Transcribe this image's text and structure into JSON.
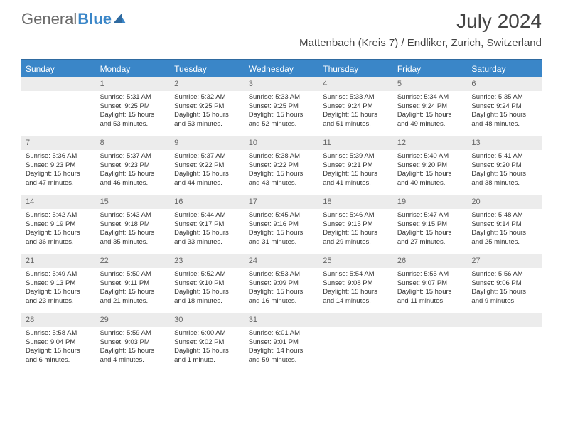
{
  "brand": {
    "part1": "General",
    "part2": "Blue"
  },
  "title": "July 2024",
  "location": "Mattenbach (Kreis 7) / Endliker, Zurich, Switzerland",
  "colors": {
    "header_bg": "#3a86c8",
    "border": "#2f6aa0",
    "daynum_bg": "#ececec",
    "text": "#333333"
  },
  "day_names": [
    "Sunday",
    "Monday",
    "Tuesday",
    "Wednesday",
    "Thursday",
    "Friday",
    "Saturday"
  ],
  "weeks": [
    [
      {
        "blank": true
      },
      {
        "n": "1",
        "sr": "5:31 AM",
        "ss": "9:25 PM",
        "dl": "15 hours and 53 minutes."
      },
      {
        "n": "2",
        "sr": "5:32 AM",
        "ss": "9:25 PM",
        "dl": "15 hours and 53 minutes."
      },
      {
        "n": "3",
        "sr": "5:33 AM",
        "ss": "9:25 PM",
        "dl": "15 hours and 52 minutes."
      },
      {
        "n": "4",
        "sr": "5:33 AM",
        "ss": "9:24 PM",
        "dl": "15 hours and 51 minutes."
      },
      {
        "n": "5",
        "sr": "5:34 AM",
        "ss": "9:24 PM",
        "dl": "15 hours and 49 minutes."
      },
      {
        "n": "6",
        "sr": "5:35 AM",
        "ss": "9:24 PM",
        "dl": "15 hours and 48 minutes."
      }
    ],
    [
      {
        "n": "7",
        "sr": "5:36 AM",
        "ss": "9:23 PM",
        "dl": "15 hours and 47 minutes."
      },
      {
        "n": "8",
        "sr": "5:37 AM",
        "ss": "9:23 PM",
        "dl": "15 hours and 46 minutes."
      },
      {
        "n": "9",
        "sr": "5:37 AM",
        "ss": "9:22 PM",
        "dl": "15 hours and 44 minutes."
      },
      {
        "n": "10",
        "sr": "5:38 AM",
        "ss": "9:22 PM",
        "dl": "15 hours and 43 minutes."
      },
      {
        "n": "11",
        "sr": "5:39 AM",
        "ss": "9:21 PM",
        "dl": "15 hours and 41 minutes."
      },
      {
        "n": "12",
        "sr": "5:40 AM",
        "ss": "9:20 PM",
        "dl": "15 hours and 40 minutes."
      },
      {
        "n": "13",
        "sr": "5:41 AM",
        "ss": "9:20 PM",
        "dl": "15 hours and 38 minutes."
      }
    ],
    [
      {
        "n": "14",
        "sr": "5:42 AM",
        "ss": "9:19 PM",
        "dl": "15 hours and 36 minutes."
      },
      {
        "n": "15",
        "sr": "5:43 AM",
        "ss": "9:18 PM",
        "dl": "15 hours and 35 minutes."
      },
      {
        "n": "16",
        "sr": "5:44 AM",
        "ss": "9:17 PM",
        "dl": "15 hours and 33 minutes."
      },
      {
        "n": "17",
        "sr": "5:45 AM",
        "ss": "9:16 PM",
        "dl": "15 hours and 31 minutes."
      },
      {
        "n": "18",
        "sr": "5:46 AM",
        "ss": "9:15 PM",
        "dl": "15 hours and 29 minutes."
      },
      {
        "n": "19",
        "sr": "5:47 AM",
        "ss": "9:15 PM",
        "dl": "15 hours and 27 minutes."
      },
      {
        "n": "20",
        "sr": "5:48 AM",
        "ss": "9:14 PM",
        "dl": "15 hours and 25 minutes."
      }
    ],
    [
      {
        "n": "21",
        "sr": "5:49 AM",
        "ss": "9:13 PM",
        "dl": "15 hours and 23 minutes."
      },
      {
        "n": "22",
        "sr": "5:50 AM",
        "ss": "9:11 PM",
        "dl": "15 hours and 21 minutes."
      },
      {
        "n": "23",
        "sr": "5:52 AM",
        "ss": "9:10 PM",
        "dl": "15 hours and 18 minutes."
      },
      {
        "n": "24",
        "sr": "5:53 AM",
        "ss": "9:09 PM",
        "dl": "15 hours and 16 minutes."
      },
      {
        "n": "25",
        "sr": "5:54 AM",
        "ss": "9:08 PM",
        "dl": "15 hours and 14 minutes."
      },
      {
        "n": "26",
        "sr": "5:55 AM",
        "ss": "9:07 PM",
        "dl": "15 hours and 11 minutes."
      },
      {
        "n": "27",
        "sr": "5:56 AM",
        "ss": "9:06 PM",
        "dl": "15 hours and 9 minutes."
      }
    ],
    [
      {
        "n": "28",
        "sr": "5:58 AM",
        "ss": "9:04 PM",
        "dl": "15 hours and 6 minutes."
      },
      {
        "n": "29",
        "sr": "5:59 AM",
        "ss": "9:03 PM",
        "dl": "15 hours and 4 minutes."
      },
      {
        "n": "30",
        "sr": "6:00 AM",
        "ss": "9:02 PM",
        "dl": "15 hours and 1 minute."
      },
      {
        "n": "31",
        "sr": "6:01 AM",
        "ss": "9:01 PM",
        "dl": "14 hours and 59 minutes."
      },
      {
        "blank": true
      },
      {
        "blank": true
      },
      {
        "blank": true
      }
    ]
  ],
  "labels": {
    "sunrise": "Sunrise:",
    "sunset": "Sunset:",
    "daylight": "Daylight:"
  }
}
